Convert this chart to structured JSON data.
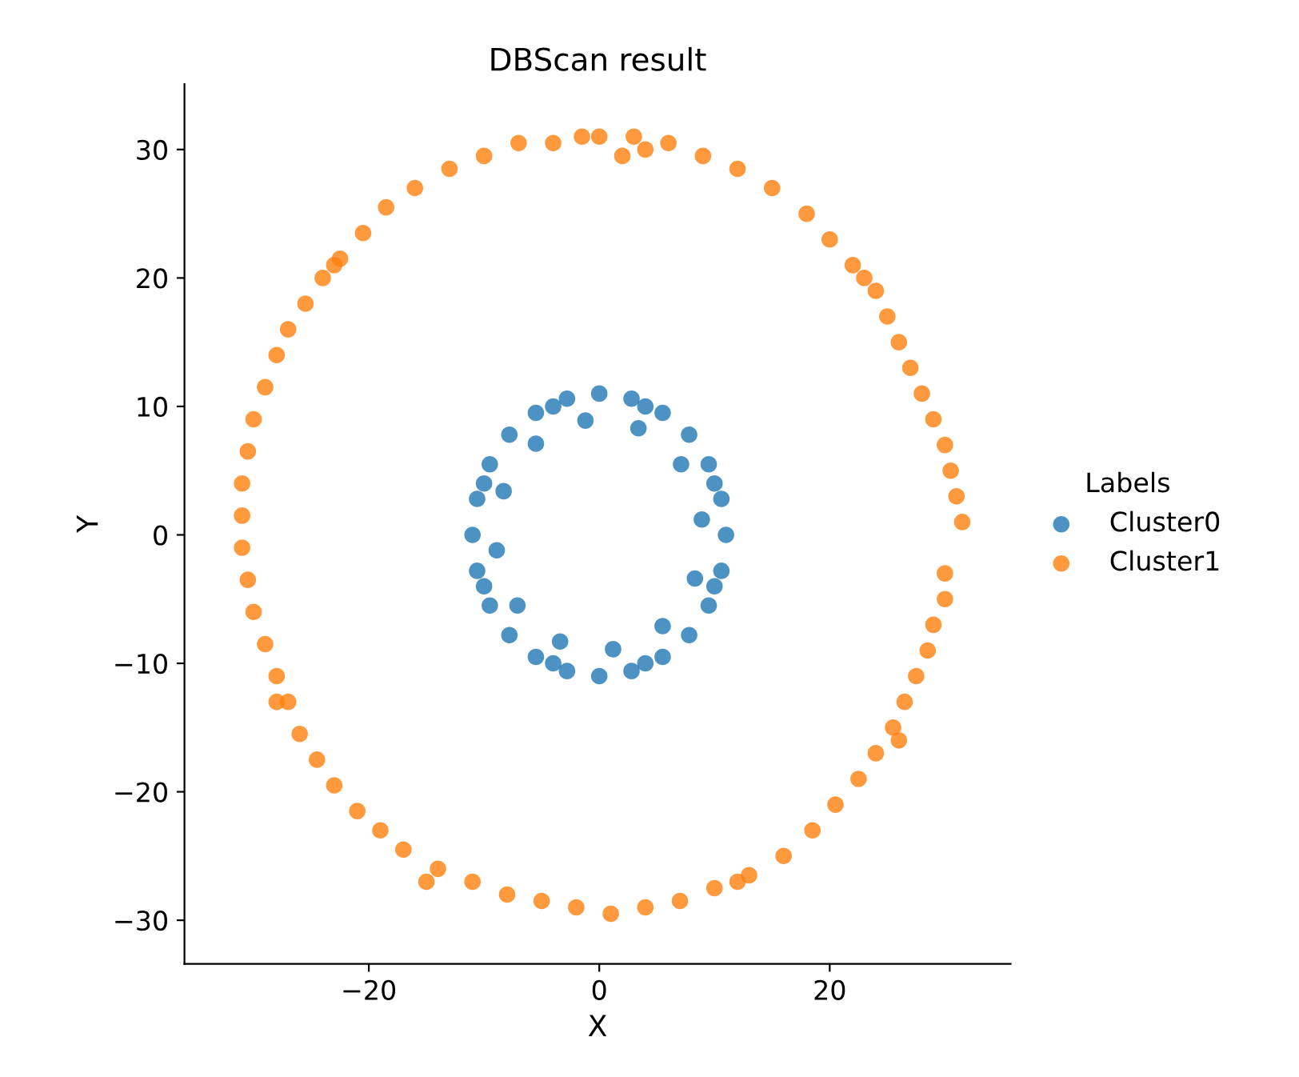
{
  "chart_data": {
    "type": "scatter",
    "title": "DBScan result",
    "xlabel": "X",
    "ylabel": "Y",
    "legend_title": "Labels",
    "legend": "right",
    "marker": "circle",
    "grid": false,
    "xlim": [
      -36,
      35.7
    ],
    "ylim": [
      -33.4,
      35.1
    ],
    "xticks": [
      -20,
      0,
      20
    ],
    "yticks": [
      -30,
      -20,
      -10,
      0,
      10,
      20,
      30
    ],
    "series": [
      {
        "name": "Cluster0",
        "color": "#1f77b4",
        "x": [
          11,
          10.6,
          9.5,
          7.8,
          5.5,
          2.8,
          0,
          -2.8,
          -5.5,
          -7.8,
          -9.5,
          -10.6,
          -11,
          -10.6,
          -9.5,
          -7.8,
          -5.5,
          -2.8,
          0,
          2.8,
          5.5,
          7.8,
          9.5,
          10.6,
          8.9,
          7.1,
          3.4,
          -1.2,
          -5.5,
          -8.3,
          -8.9,
          -7.1,
          -3.4,
          1.2,
          5.5,
          8.3,
          10,
          4,
          -4,
          -10,
          -10,
          -4,
          4,
          10
        ],
        "values": [
          0,
          2.8,
          5.5,
          7.8,
          9.5,
          10.6,
          11,
          10.6,
          9.5,
          7.8,
          5.5,
          2.8,
          0,
          -2.8,
          -5.5,
          -7.8,
          -9.5,
          -10.6,
          -11,
          -10.6,
          -9.5,
          -7.8,
          -5.5,
          -2.8,
          1.2,
          5.5,
          8.3,
          8.9,
          7.1,
          3.4,
          -1.2,
          -5.5,
          -8.3,
          -8.9,
          -7.1,
          -3.4,
          4,
          10,
          10,
          4,
          -4,
          -10,
          -10,
          -4
        ]
      },
      {
        "name": "Cluster1",
        "color": "#ff7f0e",
        "x": [
          0,
          3,
          6,
          9,
          12,
          15,
          18,
          20,
          22,
          24,
          25,
          26,
          27,
          28,
          29,
          30,
          30.5,
          31,
          31.5,
          30,
          30,
          29,
          28.5,
          27.5,
          26.5,
          25.5,
          24,
          22.5,
          20.5,
          18.5,
          16,
          13,
          10,
          7,
          4,
          1,
          -2,
          -5,
          -8,
          -11,
          -14,
          -17,
          -19,
          -21,
          -23,
          -24.5,
          -26,
          -27,
          -28,
          -29,
          -30,
          -30.5,
          -31,
          -31,
          -31,
          -30.5,
          -30,
          -29,
          -28,
          -27,
          -25.5,
          -24,
          -22.5,
          -20.5,
          -18.5,
          -16,
          -13,
          -10,
          -7,
          -4,
          -1.5,
          4,
          2,
          23,
          -23,
          -28,
          26,
          -15,
          12
        ],
        "values": [
          31,
          31,
          30.5,
          29.5,
          28.5,
          27,
          25,
          23,
          21,
          19,
          17,
          15,
          13,
          11,
          9,
          7,
          5,
          3,
          1,
          -3,
          -5,
          -7,
          -9,
          -11,
          -13,
          -15,
          -17,
          -19,
          -21,
          -23,
          -25,
          -26.5,
          -27.5,
          -28.5,
          -29,
          -29.5,
          -29,
          -28.5,
          -28,
          -27,
          -26,
          -24.5,
          -23,
          -21.5,
          -19.5,
          -17.5,
          -15.5,
          -13,
          -11,
          -8.5,
          -6,
          -3.5,
          -1,
          1.5,
          4,
          6.5,
          9,
          11.5,
          14,
          16,
          18,
          20,
          21.5,
          23.5,
          25.5,
          27,
          28.5,
          29.5,
          30.5,
          30.5,
          31,
          30,
          29.5,
          20,
          21,
          -13,
          -16,
          -27,
          -27
        ]
      }
    ]
  }
}
